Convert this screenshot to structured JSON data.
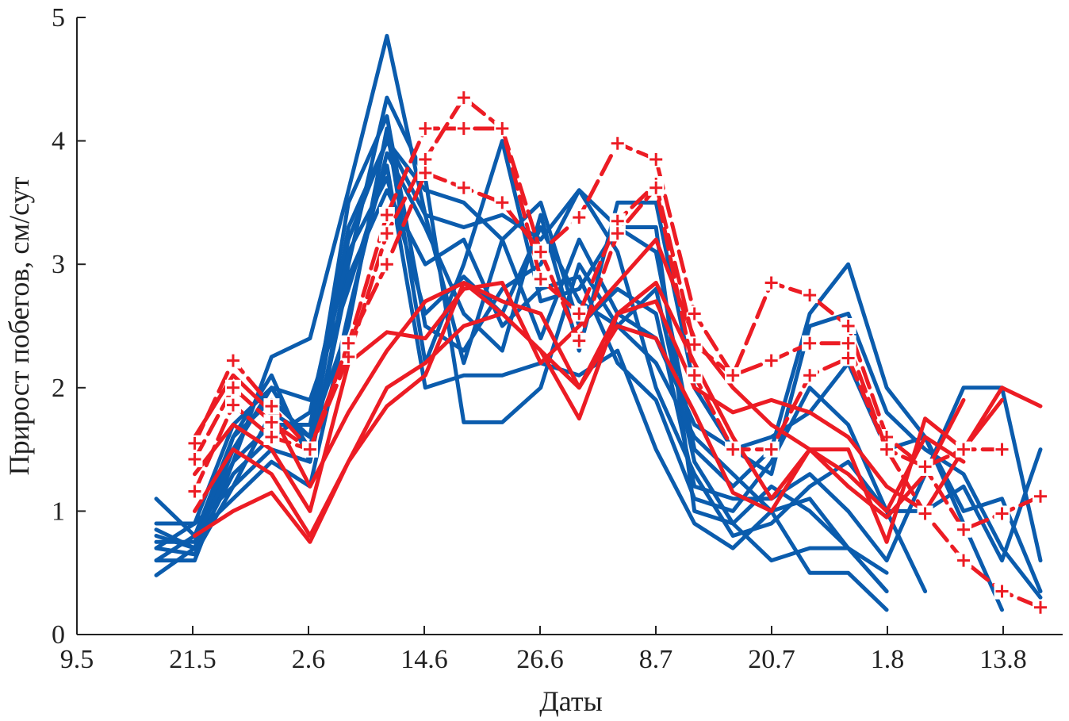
{
  "chart_data": {
    "type": "line",
    "title": "",
    "xlabel": "Даты",
    "ylabel": "Прирост побегов, см/сут",
    "ylim": [
      0,
      5
    ],
    "yticks": [
      "0",
      "1",
      "2",
      "3",
      "4",
      "5"
    ],
    "xticks": [
      "9.5",
      "21.5",
      "2.6",
      "14.6",
      "26.6",
      "8.7",
      "20.7",
      "1.8",
      "13.8"
    ],
    "x": [
      "17.5",
      "21.5",
      "25.5",
      "29.5",
      "2.6",
      "6.6",
      "10.6",
      "14.6",
      "18.6",
      "22.6",
      "26.6",
      "30.6",
      "4.7",
      "8.7",
      "12.7",
      "16.7",
      "20.7",
      "24.7",
      "28.7",
      "1.8",
      "5.8",
      "9.8",
      "13.8",
      "17.8"
    ],
    "grid": false,
    "colors": {
      "blue": "#0b5cad",
      "red": "#ec1c24"
    },
    "series": [
      {
        "color": "blue",
        "values": [
          0.6,
          0.6,
          1.4,
          2.25,
          2.4,
          3.6,
          4.85,
          3.4,
          3.3,
          3.4,
          3.2,
          3.6,
          3.3,
          3.3,
          1.0,
          0.9,
          0.6,
          0.7,
          0.7,
          0.35,
          null,
          null,
          null,
          null
        ]
      },
      {
        "color": "blue",
        "values": [
          1.1,
          0.8,
          1.6,
          2.1,
          1.4,
          3.0,
          4.35,
          3.7,
          1.72,
          1.72,
          2.0,
          3.0,
          2.5,
          2.2,
          1.6,
          1.3,
          1.0,
          0.5,
          0.5,
          0.2,
          null,
          null,
          null,
          null
        ]
      },
      {
        "color": "blue",
        "values": [
          0.7,
          0.9,
          1.2,
          1.8,
          1.6,
          2.5,
          4.1,
          2.2,
          3.0,
          4.0,
          2.7,
          2.8,
          3.3,
          3.1,
          1.5,
          1.2,
          1.5,
          2.6,
          3.0,
          2.0,
          1.6,
          0.9,
          0.2,
          null
        ]
      },
      {
        "color": "blue",
        "values": [
          0.8,
          0.7,
          1.3,
          1.6,
          1.8,
          3.2,
          4.0,
          3.6,
          3.5,
          3.2,
          3.5,
          2.5,
          2.8,
          2.6,
          1.2,
          1.1,
          1.1,
          1.3,
          1.0,
          0.6,
          1.3,
          2.0,
          2.0,
          0.6
        ]
      },
      {
        "color": "blue",
        "values": [
          0.48,
          0.7,
          1.5,
          2.0,
          1.9,
          2.8,
          3.8,
          2.0,
          2.1,
          2.1,
          2.2,
          2.1,
          2.3,
          1.5,
          0.9,
          0.7,
          1.0,
          1.1,
          0.7,
          0.35,
          null,
          null,
          null,
          null
        ]
      },
      {
        "color": "blue",
        "values": [
          0.6,
          0.8,
          1.1,
          1.4,
          1.2,
          2.6,
          3.9,
          3.3,
          2.6,
          2.3,
          3.4,
          2.3,
          3.5,
          3.5,
          2.0,
          1.5,
          1.3,
          2.5,
          2.6,
          1.8,
          1.5,
          1.3,
          0.7,
          0.3
        ]
      },
      {
        "color": "blue",
        "values": [
          0.85,
          0.7,
          1.6,
          1.9,
          1.6,
          3.5,
          4.2,
          2.5,
          2.3,
          2.8,
          3.0,
          3.6,
          3.1,
          2.0,
          1.3,
          0.8,
          0.9,
          1.2,
          1.4,
          1.0,
          0.35,
          null,
          null,
          null
        ]
      },
      {
        "color": "blue",
        "values": [
          0.7,
          0.65,
          1.2,
          1.5,
          1.4,
          2.9,
          3.6,
          3.0,
          3.2,
          2.5,
          2.8,
          2.9,
          2.2,
          1.9,
          1.1,
          1.0,
          1.4,
          2.0,
          1.7,
          1.0,
          1.0,
          1.2,
          0.6,
          1.5
        ]
      },
      {
        "color": "blue",
        "values": [
          0.9,
          0.9,
          1.7,
          2.0,
          1.5,
          3.3,
          4.0,
          3.4,
          2.2,
          3.2,
          2.4,
          3.2,
          2.6,
          2.4,
          1.7,
          1.5,
          1.6,
          1.8,
          2.2,
          1.5,
          1.6,
          1.0,
          1.1,
          0.35
        ]
      },
      {
        "color": "blue",
        "values": [
          0.75,
          0.75,
          1.4,
          1.7,
          1.7,
          3.1,
          3.7,
          2.6,
          2.9,
          2.6,
          3.3,
          2.7,
          2.5,
          2.8,
          1.4,
          0.9,
          1.2,
          1.0,
          0.7,
          0.5,
          null,
          null,
          null,
          null
        ]
      },
      {
        "color": "red",
        "values": [
          null,
          0.8,
          1.0,
          1.15,
          0.75,
          1.4,
          2.0,
          2.2,
          2.5,
          2.6,
          2.3,
          1.75,
          2.6,
          2.85,
          2.2,
          1.6,
          1.1,
          1.5,
          1.2,
          0.95,
          1.3,
          1.9,
          null,
          null
        ]
      },
      {
        "color": "red",
        "values": [
          null,
          1.0,
          1.5,
          1.3,
          0.8,
          1.4,
          1.85,
          2.1,
          2.85,
          2.7,
          2.6,
          2.0,
          2.5,
          2.4,
          1.8,
          1.15,
          1.0,
          1.5,
          1.5,
          0.75,
          1.75,
          1.5,
          2.0,
          1.85
        ]
      },
      {
        "color": "red",
        "values": [
          null,
          1.6,
          2.1,
          1.8,
          1.2,
          1.8,
          2.3,
          2.7,
          2.85,
          2.6,
          2.3,
          2.0,
          2.6,
          2.7,
          2.0,
          1.8,
          1.9,
          1.8,
          1.6,
          1.2,
          1.0,
          1.5,
          1.9,
          null
        ]
      },
      {
        "color": "red",
        "values": [
          null,
          1.3,
          1.7,
          1.5,
          1.0,
          2.2,
          2.45,
          2.4,
          2.8,
          2.85,
          2.2,
          2.5,
          2.85,
          3.2,
          2.4,
          2.0,
          1.7,
          1.5,
          1.3,
          1.0,
          1.6,
          1.4,
          null,
          null
        ]
      },
      {
        "color": "red",
        "marked": true,
        "values": [
          null,
          1.55,
          2.22,
          1.85,
          1.5,
          2.35,
          3.4,
          4.1,
          4.1,
          4.1,
          3.1,
          3.38,
          3.98,
          3.85,
          2.6,
          2.1,
          2.85,
          2.75,
          2.5,
          1.6,
          1.35,
          0.85,
          0.98,
          1.12
        ]
      },
      {
        "color": "red",
        "marked": true,
        "values": [
          null,
          1.42,
          2.0,
          1.72,
          1.5,
          2.25,
          3.25,
          3.85,
          4.35,
          4.1,
          2.88,
          2.6,
          3.35,
          3.65,
          2.35,
          2.1,
          2.22,
          2.36,
          2.36,
          1.5,
          0.98,
          0.6,
          0.35,
          0.22
        ]
      },
      {
        "color": "red",
        "marked": true,
        "values": [
          null,
          1.16,
          1.86,
          1.6,
          1.5,
          2.36,
          3.0,
          3.74,
          3.62,
          3.5,
          3.1,
          2.38,
          3.25,
          3.62,
          2.1,
          1.5,
          1.5,
          2.1,
          2.24,
          1.5,
          1.36,
          1.5,
          1.5,
          null
        ]
      }
    ]
  }
}
